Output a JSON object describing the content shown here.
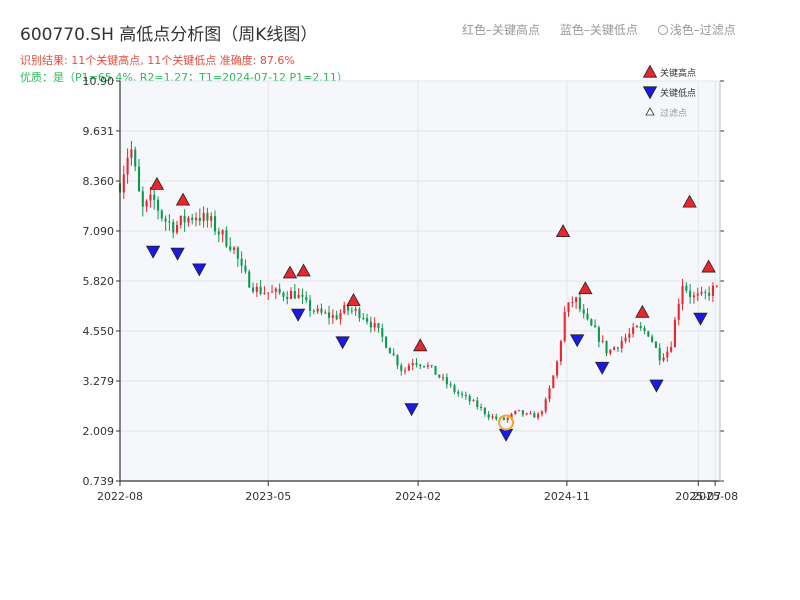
{
  "title": "600770.SH 高低点分析图（周K线图）",
  "subtitle_result": "识别结果: 11个关键高点, 11个关键低点   准确度: 87.6%",
  "subtitle_quality": "优质：是（P1=65.4%, R2=1.27；T1=2024-07-12 P1=2.11）",
  "top_legend": {
    "red": "红色–关键高点",
    "blue": "蓝色–关键低点",
    "light": "浅色–过滤点"
  },
  "colors": {
    "up": "#e8262d",
    "down": "#0e9a4e",
    "high_marker": "#e8262d",
    "low_marker": "#1a1ae6",
    "filtered_ring": "#f5a623",
    "plot_bg": "#f5f7fa",
    "grid": "#e3e6ea",
    "axis": "#333333"
  },
  "chart_data": {
    "type": "candlestick",
    "y_ticks": [
      "0.739",
      "2.009",
      "3.279",
      "4.550",
      "5.820",
      "7.090",
      "8.360",
      "9.631",
      "10.90"
    ],
    "ylim": [
      0.739,
      10.9
    ],
    "x_ticks": [
      {
        "label": "2022-08",
        "date": "2022-08-01"
      },
      {
        "label": "2023-05",
        "date": "2023-05-01"
      },
      {
        "label": "2024-02",
        "date": "2024-02-01"
      },
      {
        "label": "2024-11",
        "date": "2024-11-01"
      },
      {
        "label": "2025-07",
        "date": "2025-07-01"
      },
      {
        "label": "2025-08",
        "date": "2025-08-01"
      }
    ],
    "xlim": [
      "2022-08-01",
      "2025-08-10"
    ],
    "legend": {
      "position": "top-right",
      "items": [
        {
          "label": "关键高点",
          "kind": "high"
        },
        {
          "label": "关键低点",
          "kind": "low"
        },
        {
          "label": "过滤点",
          "kind": "filtered"
        }
      ]
    },
    "price_path": [
      [
        "2022-08-01",
        8.3
      ],
      [
        "2022-08-20",
        9.3
      ],
      [
        "2022-09-10",
        7.6
      ],
      [
        "2022-10-01",
        7.9
      ],
      [
        "2022-10-20",
        7.4
      ],
      [
        "2022-11-10",
        7.2
      ],
      [
        "2022-12-01",
        7.4
      ],
      [
        "2022-12-20",
        7.5
      ],
      [
        "2023-01-15",
        7.3
      ],
      [
        "2023-02-10",
        6.9
      ],
      [
        "2023-02-25",
        6.7
      ],
      [
        "2023-03-15",
        6.0
      ],
      [
        "2023-04-10",
        5.6
      ],
      [
        "2023-05-10",
        5.5
      ],
      [
        "2023-06-01",
        5.5
      ],
      [
        "2023-06-20",
        5.5
      ],
      [
        "2023-07-10",
        5.2
      ],
      [
        "2023-08-01",
        5.0
      ],
      [
        "2023-09-01",
        4.9
      ],
      [
        "2023-09-20",
        5.1
      ],
      [
        "2023-10-20",
        5.0
      ],
      [
        "2023-11-10",
        4.7
      ],
      [
        "2023-12-01",
        4.3
      ],
      [
        "2024-01-05",
        3.5
      ],
      [
        "2024-01-20",
        3.8
      ],
      [
        "2024-02-15",
        3.7
      ],
      [
        "2024-03-10",
        3.4
      ],
      [
        "2024-04-10",
        3.0
      ],
      [
        "2024-05-15",
        2.7
      ],
      [
        "2024-06-10",
        2.4
      ],
      [
        "2024-06-28",
        2.3
      ],
      [
        "2024-07-12",
        2.3
      ],
      [
        "2024-08-01",
        2.5
      ],
      [
        "2024-08-20",
        2.4
      ],
      [
        "2024-09-10",
        2.4
      ],
      [
        "2024-09-25",
        2.8
      ],
      [
        "2024-10-15",
        3.8
      ],
      [
        "2024-10-28",
        5.0
      ],
      [
        "2024-11-15",
        5.4
      ],
      [
        "2024-12-05",
        4.8
      ],
      [
        "2024-12-25",
        4.5
      ],
      [
        "2025-01-15",
        4.0
      ],
      [
        "2025-02-10",
        4.3
      ],
      [
        "2025-03-10",
        4.6
      ],
      [
        "2025-04-01",
        4.5
      ],
      [
        "2025-04-20",
        3.9
      ],
      [
        "2025-05-10",
        4.1
      ],
      [
        "2025-06-01",
        5.8
      ],
      [
        "2025-06-20",
        5.4
      ],
      [
        "2025-07-10",
        5.4
      ],
      [
        "2025-07-25",
        5.6
      ],
      [
        "2025-08-08",
        5.6
      ]
    ],
    "key_highs": [
      {
        "date": "2022-10-08",
        "price": 8.05
      },
      {
        "date": "2022-11-25",
        "price": 7.65
      },
      {
        "date": "2023-06-10",
        "price": 5.8
      },
      {
        "date": "2023-07-05",
        "price": 5.85
      },
      {
        "date": "2023-10-05",
        "price": 5.1
      },
      {
        "date": "2024-02-05",
        "price": 3.95
      },
      {
        "date": "2024-10-25",
        "price": 6.85
      },
      {
        "date": "2024-12-05",
        "price": 5.4
      },
      {
        "date": "2025-03-20",
        "price": 4.8
      },
      {
        "date": "2025-06-15",
        "price": 7.6
      },
      {
        "date": "2025-07-20",
        "price": 5.95
      }
    ],
    "key_lows": [
      {
        "date": "2022-10-01",
        "price": 6.8
      },
      {
        "date": "2022-11-15",
        "price": 6.75
      },
      {
        "date": "2022-12-25",
        "price": 6.35
      },
      {
        "date": "2023-06-25",
        "price": 5.2
      },
      {
        "date": "2023-09-15",
        "price": 4.5
      },
      {
        "date": "2024-01-20",
        "price": 2.8
      },
      {
        "date": "2024-07-12",
        "price": 2.15
      },
      {
        "date": "2024-11-20",
        "price": 4.55
      },
      {
        "date": "2025-01-05",
        "price": 3.85
      },
      {
        "date": "2025-04-15",
        "price": 3.4
      },
      {
        "date": "2025-07-05",
        "price": 5.1
      }
    ],
    "filtered_points": [
      {
        "date": "2024-07-12",
        "price": 2.15
      }
    ]
  }
}
